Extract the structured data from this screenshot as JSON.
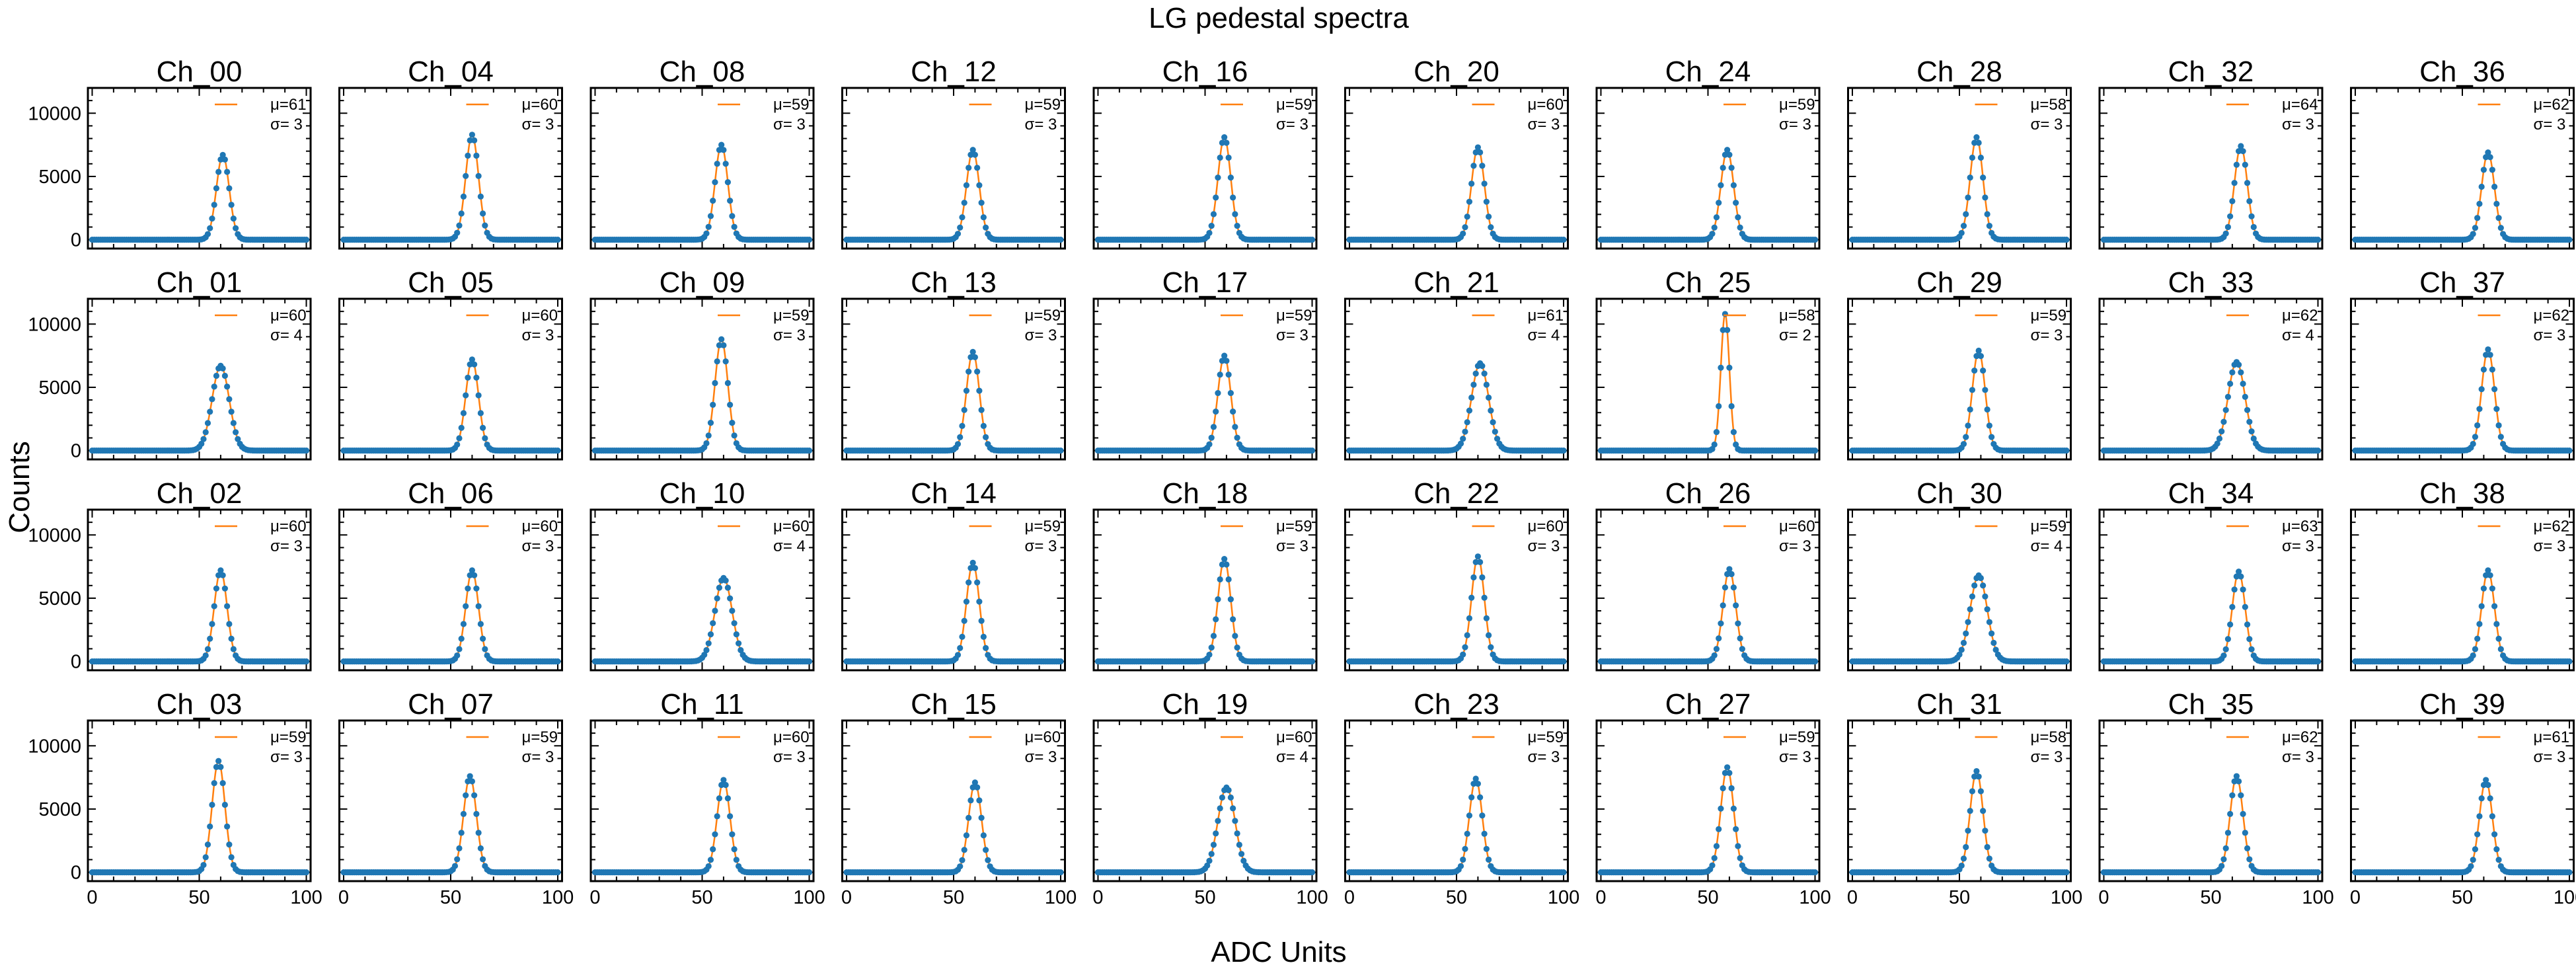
{
  "figure": {
    "title": "LG pedestal spectra",
    "xlabel": "ADC Units",
    "ylabel": "Counts"
  },
  "colors": {
    "points": "#1f77b4",
    "fit": "#ff7f0e"
  },
  "chart_data": {
    "type": "scatter",
    "description_of_series": "binned pedestal counts (blue points) with gaussian fit (orange line)",
    "grid": false,
    "rows": 4,
    "cols": 10,
    "xlim": [
      -2,
      102
    ],
    "ylim": [
      -700,
      12000
    ],
    "xticks": [
      0,
      50,
      100
    ],
    "yticks": [
      0,
      5000,
      10000
    ],
    "mu_prefix": "μ=",
    "sigma_prefix": "σ= ",
    "panels": [
      {
        "title": "Ch_00",
        "mu": 61,
        "sigma": 3,
        "peak": 6700
      },
      {
        "title": "Ch_04",
        "mu": 60,
        "sigma": 3,
        "peak": 8300
      },
      {
        "title": "Ch_08",
        "mu": 59,
        "sigma": 3,
        "peak": 7500
      },
      {
        "title": "Ch_12",
        "mu": 59,
        "sigma": 3,
        "peak": 7100
      },
      {
        "title": "Ch_16",
        "mu": 59,
        "sigma": 3,
        "peak": 8100
      },
      {
        "title": "Ch_20",
        "mu": 60,
        "sigma": 3,
        "peak": 7300
      },
      {
        "title": "Ch_24",
        "mu": 59,
        "sigma": 3,
        "peak": 7100
      },
      {
        "title": "Ch_28",
        "mu": 58,
        "sigma": 3,
        "peak": 8100
      },
      {
        "title": "Ch_32",
        "mu": 64,
        "sigma": 3,
        "peak": 7400
      },
      {
        "title": "Ch_36",
        "mu": 62,
        "sigma": 3,
        "peak": 6900
      },
      {
        "title": "Ch_01",
        "mu": 60,
        "sigma": 4,
        "peak": 6700
      },
      {
        "title": "Ch_05",
        "mu": 60,
        "sigma": 3,
        "peak": 7200
      },
      {
        "title": "Ch_09",
        "mu": 59,
        "sigma": 3,
        "peak": 8800
      },
      {
        "title": "Ch_13",
        "mu": 59,
        "sigma": 3,
        "peak": 7800
      },
      {
        "title": "Ch_17",
        "mu": 59,
        "sigma": 3,
        "peak": 7500
      },
      {
        "title": "Ch_21",
        "mu": 61,
        "sigma": 4,
        "peak": 6900
      },
      {
        "title": "Ch_25",
        "mu": 58,
        "sigma": 2,
        "peak": 10800
      },
      {
        "title": "Ch_29",
        "mu": 59,
        "sigma": 3,
        "peak": 7900
      },
      {
        "title": "Ch_33",
        "mu": 62,
        "sigma": 4,
        "peak": 7000
      },
      {
        "title": "Ch_37",
        "mu": 62,
        "sigma": 3,
        "peak": 8000
      },
      {
        "title": "Ch_02",
        "mu": 60,
        "sigma": 3,
        "peak": 7200
      },
      {
        "title": "Ch_06",
        "mu": 60,
        "sigma": 3,
        "peak": 7200
      },
      {
        "title": "Ch_10",
        "mu": 60,
        "sigma": 4,
        "peak": 6600
      },
      {
        "title": "Ch_14",
        "mu": 59,
        "sigma": 3,
        "peak": 7800
      },
      {
        "title": "Ch_18",
        "mu": 59,
        "sigma": 3,
        "peak": 8100
      },
      {
        "title": "Ch_22",
        "mu": 60,
        "sigma": 3,
        "peak": 8300
      },
      {
        "title": "Ch_26",
        "mu": 60,
        "sigma": 3,
        "peak": 7300
      },
      {
        "title": "Ch_30",
        "mu": 59,
        "sigma": 4,
        "peak": 6800
      },
      {
        "title": "Ch_34",
        "mu": 63,
        "sigma": 3,
        "peak": 7100
      },
      {
        "title": "Ch_38",
        "mu": 62,
        "sigma": 3,
        "peak": 7200
      },
      {
        "title": "Ch_03",
        "mu": 59,
        "sigma": 3,
        "peak": 8800
      },
      {
        "title": "Ch_07",
        "mu": 59,
        "sigma": 3,
        "peak": 7600
      },
      {
        "title": "Ch_11",
        "mu": 60,
        "sigma": 3,
        "peak": 7300
      },
      {
        "title": "Ch_15",
        "mu": 60,
        "sigma": 3,
        "peak": 7100
      },
      {
        "title": "Ch_19",
        "mu": 60,
        "sigma": 4,
        "peak": 6700
      },
      {
        "title": "Ch_23",
        "mu": 59,
        "sigma": 3,
        "peak": 7400
      },
      {
        "title": "Ch_27",
        "mu": 59,
        "sigma": 3,
        "peak": 8300
      },
      {
        "title": "Ch_31",
        "mu": 58,
        "sigma": 3,
        "peak": 8000
      },
      {
        "title": "Ch_35",
        "mu": 62,
        "sigma": 3,
        "peak": 7600
      },
      {
        "title": "Ch_39",
        "mu": 61,
        "sigma": 3,
        "peak": 7300
      }
    ]
  }
}
